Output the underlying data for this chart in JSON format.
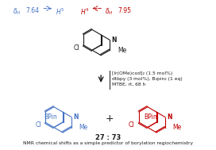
{
  "bg_color": "#ffffff",
  "figsize": [
    2.72,
    1.89
  ],
  "dpi": 100,
  "blue_color": "#4472c4",
  "red_color": "#c00000",
  "black_color": "#1a1a1a",
  "reagents_line1": "[Ir(OMe)cod]₂ (1.5 mol%)",
  "reagents_line2": "dtbpy (3 mol%), B₂pin₂ (1 eq)",
  "reagents_line3": "MTBE, rt, 68 h",
  "ratio_text": "27 : 73",
  "caption_text": "NMR chemical shifts as a simple predictor of borylation regiochemistry"
}
